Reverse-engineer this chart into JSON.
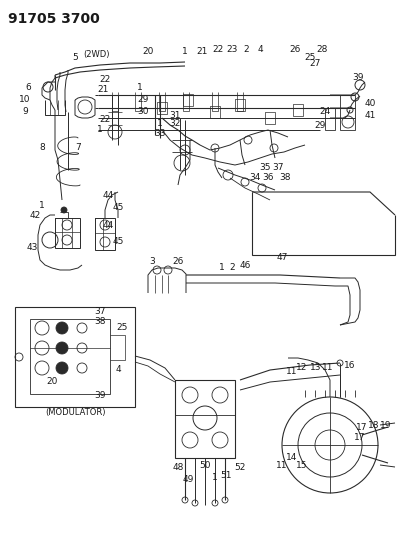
{
  "title": "91705 3700",
  "background_color": "#ffffff",
  "line_color": "#2a2a2a",
  "text_color": "#1a1a1a",
  "title_fontsize": 10,
  "label_fontsize": 6.5,
  "fig_width": 3.99,
  "fig_height": 5.33,
  "dpi": 100
}
